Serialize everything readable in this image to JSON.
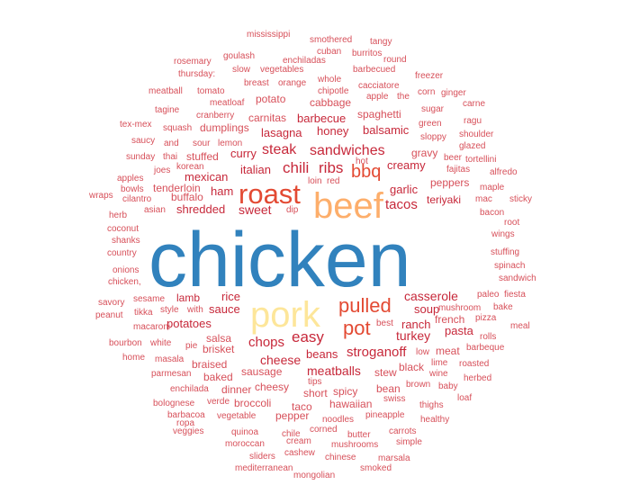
{
  "colors": {
    "blue": "#3182bd",
    "orange": "#fdae6b",
    "yellow": "#fde69a",
    "red": "#e34a33",
    "crimson": "#c7283a",
    "pink": "#d7505a"
  },
  "words": [
    {
      "text": "chicken",
      "color": "blue"
    },
    {
      "text": "beef",
      "color": "orange"
    },
    {
      "text": "pork",
      "color": "yellow"
    },
    {
      "text": "roast",
      "color": "red"
    },
    {
      "text": "pulled",
      "color": "red"
    },
    {
      "text": "pot",
      "color": "red"
    },
    {
      "text": "bbq",
      "color": "red"
    },
    {
      "text": "sandwiches",
      "color": "crimson"
    },
    {
      "text": "chili",
      "color": "crimson"
    },
    {
      "text": "ribs",
      "color": "crimson"
    },
    {
      "text": "tacos",
      "color": "crimson"
    },
    {
      "text": "sweet",
      "color": "crimson"
    },
    {
      "text": "easy",
      "color": "crimson"
    },
    {
      "text": "chops",
      "color": "crimson"
    },
    {
      "text": "steak",
      "color": "crimson"
    },
    {
      "text": "lasagna",
      "color": "crimson"
    },
    {
      "text": "barbecue",
      "color": "crimson"
    },
    {
      "text": "casserole",
      "color": "crimson"
    },
    {
      "text": "soup",
      "color": "crimson"
    },
    {
      "text": "turkey",
      "color": "crimson"
    },
    {
      "text": "stroganoff",
      "color": "crimson"
    },
    {
      "text": "meatballs",
      "color": "crimson"
    },
    {
      "text": "beans",
      "color": "crimson"
    },
    {
      "text": "cheese",
      "color": "crimson"
    },
    {
      "text": "garlic",
      "color": "crimson"
    },
    {
      "text": "creamy",
      "color": "crimson"
    },
    {
      "text": "honey",
      "color": "crimson"
    },
    {
      "text": "balsamic",
      "color": "crimson"
    },
    {
      "text": "curry",
      "color": "crimson"
    },
    {
      "text": "italian",
      "color": "crimson"
    },
    {
      "text": "ham",
      "color": "crimson"
    },
    {
      "text": "mexican",
      "color": "crimson"
    },
    {
      "text": "shredded",
      "color": "crimson"
    },
    {
      "text": "sauce",
      "color": "crimson"
    },
    {
      "text": "rice",
      "color": "crimson"
    },
    {
      "text": "lamb",
      "color": "crimson"
    },
    {
      "text": "potatoes",
      "color": "crimson"
    },
    {
      "text": "ranch",
      "color": "crimson"
    },
    {
      "text": "pasta",
      "color": "crimson"
    },
    {
      "text": "teriyaki",
      "color": "crimson"
    },
    {
      "text": "carnitas",
      "color": "pink"
    },
    {
      "text": "cabbage",
      "color": "pink"
    },
    {
      "text": "spaghetti",
      "color": "pink"
    },
    {
      "text": "potato",
      "color": "pink"
    },
    {
      "text": "dumplings",
      "color": "pink"
    },
    {
      "text": "stuffed",
      "color": "pink"
    },
    {
      "text": "tenderloin",
      "color": "pink"
    },
    {
      "text": "buffalo",
      "color": "pink"
    },
    {
      "text": "gravy",
      "color": "pink"
    },
    {
      "text": "peppers",
      "color": "pink"
    },
    {
      "text": "salsa",
      "color": "pink"
    },
    {
      "text": "brisket",
      "color": "pink"
    },
    {
      "text": "braised",
      "color": "pink"
    },
    {
      "text": "sausage",
      "color": "pink"
    },
    {
      "text": "baked",
      "color": "pink"
    },
    {
      "text": "dinner",
      "color": "pink"
    },
    {
      "text": "cheesy",
      "color": "pink"
    },
    {
      "text": "short",
      "color": "pink"
    },
    {
      "text": "spicy",
      "color": "pink"
    },
    {
      "text": "taco",
      "color": "pink"
    },
    {
      "text": "hawaiian",
      "color": "pink"
    },
    {
      "text": "pepper",
      "color": "pink"
    },
    {
      "text": "bean",
      "color": "pink"
    },
    {
      "text": "stew",
      "color": "pink"
    },
    {
      "text": "black",
      "color": "pink"
    },
    {
      "text": "meat",
      "color": "pink"
    },
    {
      "text": "french",
      "color": "pink"
    },
    {
      "text": "broccoli",
      "color": "pink"
    },
    {
      "text": "mississippi",
      "color": "pink"
    },
    {
      "text": "smothered",
      "color": "pink"
    },
    {
      "text": "tangy",
      "color": "pink"
    },
    {
      "text": "goulash",
      "color": "pink"
    },
    {
      "text": "cuban",
      "color": "pink"
    },
    {
      "text": "burritos",
      "color": "pink"
    },
    {
      "text": "rosemary",
      "color": "pink"
    },
    {
      "text": "enchiladas",
      "color": "pink"
    },
    {
      "text": "round",
      "color": "pink"
    },
    {
      "text": "slow",
      "color": "pink"
    },
    {
      "text": "vegetables",
      "color": "pink"
    },
    {
      "text": "barbecued",
      "color": "pink"
    },
    {
      "text": "thursday:",
      "color": "pink"
    },
    {
      "text": "whole",
      "color": "pink"
    },
    {
      "text": "freezer",
      "color": "pink"
    },
    {
      "text": "breast",
      "color": "pink"
    },
    {
      "text": "orange",
      "color": "pink"
    },
    {
      "text": "cacciatore",
      "color": "pink"
    },
    {
      "text": "meatball",
      "color": "pink"
    },
    {
      "text": "tomato",
      "color": "pink"
    },
    {
      "text": "chipotle",
      "color": "pink"
    },
    {
      "text": "corn",
      "color": "pink"
    },
    {
      "text": "ginger",
      "color": "pink"
    },
    {
      "text": "apple",
      "color": "pink"
    },
    {
      "text": "the",
      "color": "pink"
    },
    {
      "text": "meatloaf",
      "color": "pink"
    },
    {
      "text": "tagine",
      "color": "pink"
    },
    {
      "text": "sugar",
      "color": "pink"
    },
    {
      "text": "carne",
      "color": "pink"
    },
    {
      "text": "cranberry",
      "color": "pink"
    },
    {
      "text": "tex-mex",
      "color": "pink"
    },
    {
      "text": "green",
      "color": "pink"
    },
    {
      "text": "ragu",
      "color": "pink"
    },
    {
      "text": "squash",
      "color": "pink"
    },
    {
      "text": "shoulder",
      "color": "pink"
    },
    {
      "text": "saucy",
      "color": "pink"
    },
    {
      "text": "and",
      "color": "pink"
    },
    {
      "text": "sour",
      "color": "pink"
    },
    {
      "text": "lemon",
      "color": "pink"
    },
    {
      "text": "sloppy",
      "color": "pink"
    },
    {
      "text": "glazed",
      "color": "pink"
    },
    {
      "text": "sunday",
      "color": "pink"
    },
    {
      "text": "thai",
      "color": "pink"
    },
    {
      "text": "beer",
      "color": "pink"
    },
    {
      "text": "tortellini",
      "color": "pink"
    },
    {
      "text": "joes",
      "color": "pink"
    },
    {
      "text": "korean",
      "color": "pink"
    },
    {
      "text": "hot",
      "color": "pink"
    },
    {
      "text": "fajitas",
      "color": "pink"
    },
    {
      "text": "alfredo",
      "color": "pink"
    },
    {
      "text": "apples",
      "color": "pink"
    },
    {
      "text": "loin",
      "color": "pink"
    },
    {
      "text": "red",
      "color": "pink"
    },
    {
      "text": "bowls",
      "color": "pink"
    },
    {
      "text": "maple",
      "color": "pink"
    },
    {
      "text": "wraps",
      "color": "pink"
    },
    {
      "text": "cilantro",
      "color": "pink"
    },
    {
      "text": "mac",
      "color": "pink"
    },
    {
      "text": "sticky",
      "color": "pink"
    },
    {
      "text": "asian",
      "color": "pink"
    },
    {
      "text": "dip",
      "color": "pink"
    },
    {
      "text": "bacon",
      "color": "pink"
    },
    {
      "text": "herb",
      "color": "pink"
    },
    {
      "text": "root",
      "color": "pink"
    },
    {
      "text": "coconut",
      "color": "pink"
    },
    {
      "text": "wings",
      "color": "pink"
    },
    {
      "text": "shanks",
      "color": "pink"
    },
    {
      "text": "country",
      "color": "pink"
    },
    {
      "text": "stuffing",
      "color": "pink"
    },
    {
      "text": "spinach",
      "color": "pink"
    },
    {
      "text": "onions",
      "color": "pink"
    },
    {
      "text": "sandwich",
      "color": "pink"
    },
    {
      "text": "chicken,",
      "color": "pink"
    },
    {
      "text": "paleo",
      "color": "pink"
    },
    {
      "text": "fiesta",
      "color": "pink"
    },
    {
      "text": "savory",
      "color": "pink"
    },
    {
      "text": "sesame",
      "color": "pink"
    },
    {
      "text": "mushroom",
      "color": "pink"
    },
    {
      "text": "bake",
      "color": "pink"
    },
    {
      "text": "peanut",
      "color": "pink"
    },
    {
      "text": "tikka",
      "color": "pink"
    },
    {
      "text": "style",
      "color": "pink"
    },
    {
      "text": "with",
      "color": "pink"
    },
    {
      "text": "pizza",
      "color": "pink"
    },
    {
      "text": "macaroni",
      "color": "pink"
    },
    {
      "text": "best",
      "color": "pink"
    },
    {
      "text": "meal",
      "color": "pink"
    },
    {
      "text": "rolls",
      "color": "pink"
    },
    {
      "text": "bourbon",
      "color": "pink"
    },
    {
      "text": "white",
      "color": "pink"
    },
    {
      "text": "pie",
      "color": "pink"
    },
    {
      "text": "low",
      "color": "pink"
    },
    {
      "text": "barbeque",
      "color": "pink"
    },
    {
      "text": "home",
      "color": "pink"
    },
    {
      "text": "masala",
      "color": "pink"
    },
    {
      "text": "lime",
      "color": "pink"
    },
    {
      "text": "roasted",
      "color": "pink"
    },
    {
      "text": "parmesan",
      "color": "pink"
    },
    {
      "text": "wine",
      "color": "pink"
    },
    {
      "text": "herbed",
      "color": "pink"
    },
    {
      "text": "tips",
      "color": "pink"
    },
    {
      "text": "baby",
      "color": "pink"
    },
    {
      "text": "enchilada",
      "color": "pink"
    },
    {
      "text": "brown",
      "color": "pink"
    },
    {
      "text": "loaf",
      "color": "pink"
    },
    {
      "text": "swiss",
      "color": "pink"
    },
    {
      "text": "bolognese",
      "color": "pink"
    },
    {
      "text": "verde",
      "color": "pink"
    },
    {
      "text": "thighs",
      "color": "pink"
    },
    {
      "text": "barbacoa",
      "color": "pink"
    },
    {
      "text": "vegetable",
      "color": "pink"
    },
    {
      "text": "noodles",
      "color": "pink"
    },
    {
      "text": "pineapple",
      "color": "pink"
    },
    {
      "text": "healthy",
      "color": "pink"
    },
    {
      "text": "ropa",
      "color": "pink"
    },
    {
      "text": "veggies",
      "color": "pink"
    },
    {
      "text": "quinoa",
      "color": "pink"
    },
    {
      "text": "chile",
      "color": "pink"
    },
    {
      "text": "corned",
      "color": "pink"
    },
    {
      "text": "butter",
      "color": "pink"
    },
    {
      "text": "carrots",
      "color": "pink"
    },
    {
      "text": "moroccan",
      "color": "pink"
    },
    {
      "text": "cream",
      "color": "pink"
    },
    {
      "text": "mushrooms",
      "color": "pink"
    },
    {
      "text": "simple",
      "color": "pink"
    },
    {
      "text": "cashew",
      "color": "pink"
    },
    {
      "text": "sliders",
      "color": "pink"
    },
    {
      "text": "chinese",
      "color": "pink"
    },
    {
      "text": "marsala",
      "color": "pink"
    },
    {
      "text": "mediterranean",
      "color": "pink"
    },
    {
      "text": "smoked",
      "color": "pink"
    },
    {
      "text": "mongolian",
      "color": "pink"
    }
  ]
}
